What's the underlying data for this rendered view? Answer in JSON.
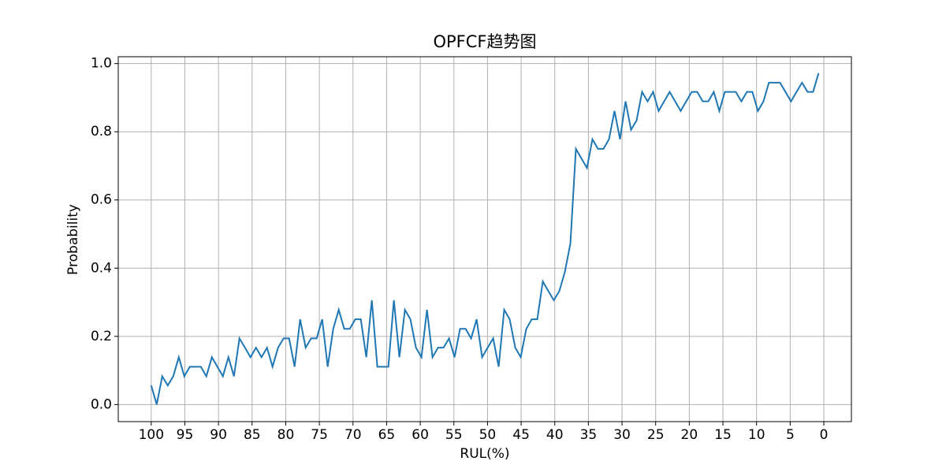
{
  "chart_data": {
    "type": "line",
    "title": "OPFCF趋势图",
    "xlabel": "RUL(%)",
    "ylabel": "Probability",
    "x": [
      100,
      99.18,
      98.36,
      97.54,
      96.72,
      95.9,
      95.08,
      94.26,
      93.44,
      92.62,
      91.8,
      90.98,
      90.16,
      89.34,
      88.52,
      87.7,
      86.88,
      86.06,
      85.24,
      84.42,
      83.6,
      82.78,
      81.96,
      81.14,
      80.32,
      79.5,
      78.68,
      77.86,
      77.04,
      76.22,
      75.4,
      74.58,
      73.76,
      72.94,
      72.12,
      71.3,
      70.48,
      69.66,
      68.84,
      68.02,
      67.2,
      66.38,
      65.56,
      64.74,
      63.92,
      63.1,
      62.28,
      61.46,
      60.64,
      59.82,
      59,
      58.18,
      57.36,
      56.54,
      55.72,
      54.9,
      54.08,
      53.26,
      52.44,
      51.62,
      50.8,
      49.98,
      49.16,
      48.34,
      47.52,
      46.7,
      45.88,
      45.06,
      44.24,
      43.42,
      42.6,
      41.78,
      40.96,
      40.14,
      39.32,
      38.5,
      37.68,
      36.86,
      36.04,
      35.22,
      34.4,
      33.58,
      32.76,
      31.94,
      31.12,
      30.3,
      29.48,
      28.66,
      27.84,
      27.02,
      26.2,
      25.38,
      24.56,
      23.74,
      22.92,
      22.1,
      21.28,
      20.46,
      19.64,
      18.82,
      18,
      17.18,
      16.36,
      15.54,
      14.72,
      13.9,
      13.08,
      12.26,
      11.44,
      10.62,
      9.8,
      8.98,
      8.16,
      7.34,
      6.52,
      5.7,
      4.88,
      4.06,
      3.24,
      2.42,
      1.6,
      0.78
    ],
    "series": [
      {
        "color": "#1f77b4",
        "values": [
          0.056,
          0,
          0.083,
          0.056,
          0.083,
          0.139,
          0.083,
          0.111,
          0.111,
          0.111,
          0.083,
          0.139,
          0.111,
          0.083,
          0.139,
          0.083,
          0.194,
          0.167,
          0.139,
          0.167,
          0.139,
          0.167,
          0.111,
          0.167,
          0.194,
          0.194,
          0.111,
          0.25,
          0.167,
          0.194,
          0.194,
          0.25,
          0.111,
          0.222,
          0.278,
          0.222,
          0.222,
          0.25,
          0.25,
          0.139,
          0.306,
          0.111,
          0.111,
          0.111,
          0.306,
          0.139,
          0.278,
          0.25,
          0.167,
          0.139,
          0.278,
          0.139,
          0.167,
          0.167,
          0.194,
          0.139,
          0.222,
          0.222,
          0.194,
          0.25,
          0.139,
          0.167,
          0.194,
          0.111,
          0.278,
          0.25,
          0.167,
          0.139,
          0.222,
          0.25,
          0.25,
          0.361,
          0.333,
          0.306,
          0.333,
          0.389,
          0.472,
          0.75,
          0.722,
          0.694,
          0.778,
          0.75,
          0.75,
          0.778,
          0.861,
          0.778,
          0.889,
          0.806,
          0.833,
          0.917,
          0.889,
          0.917,
          0.861,
          0.889,
          0.917,
          0.889,
          0.861,
          0.889,
          0.917,
          0.917,
          0.889,
          0.889,
          0.917,
          0.861,
          0.917,
          0.917,
          0.917,
          0.889,
          0.917,
          0.917,
          0.861,
          0.889,
          0.944,
          0.944,
          0.944,
          0.917,
          0.889,
          0.917,
          0.944,
          0.917,
          0.917,
          0.972
        ]
      }
    ],
    "xlim": [
      104.9,
      -4.1
    ],
    "ylim": [
      -0.05,
      1.02
    ],
    "xticks": [
      100,
      95,
      90,
      85,
      80,
      75,
      70,
      65,
      60,
      55,
      50,
      45,
      40,
      35,
      30,
      25,
      20,
      15,
      10,
      5,
      0
    ],
    "yticks": [
      {
        "value": 0,
        "label": "0.0"
      },
      0.2,
      0.4,
      0.6,
      0.8,
      {
        "value": 1,
        "label": "1.0"
      }
    ],
    "grid": true
  }
}
